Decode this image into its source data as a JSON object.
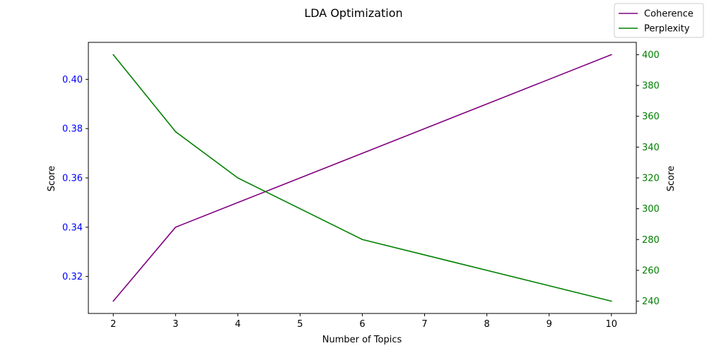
{
  "chart_data": {
    "type": "line",
    "title": "LDA Optimization",
    "xlabel": "Number of Topics",
    "ylabel_left": "Score",
    "ylabel_right": "Score",
    "xlim": [
      1.6,
      10.4
    ],
    "xticks": [
      "2",
      "3",
      "4",
      "5",
      "6",
      "7",
      "8",
      "9",
      "10"
    ],
    "ylim_left": [
      0.305,
      0.415
    ],
    "yticks_left": [
      "0.32",
      "0.34",
      "0.36",
      "0.38",
      "0.40"
    ],
    "ylim_right": [
      232,
      408
    ],
    "yticks_right": [
      "240",
      "260",
      "280",
      "300",
      "320",
      "340",
      "360",
      "380",
      "400"
    ],
    "grid": false,
    "legend_position": "top-right",
    "colors": {
      "left_axis_ticks": "#0000ff",
      "right_axis_ticks": "#008000"
    },
    "series": [
      {
        "name": "Coherence",
        "axis": "left",
        "color": "#800080",
        "x": [
          2,
          3,
          4,
          6,
          10
        ],
        "y": [
          0.31,
          0.34,
          0.35,
          0.37,
          0.41
        ]
      },
      {
        "name": "Perplexity",
        "axis": "right",
        "color": "#008000",
        "x": [
          2,
          3,
          4,
          6,
          10
        ],
        "y": [
          400,
          350,
          320,
          280,
          240
        ]
      }
    ]
  }
}
